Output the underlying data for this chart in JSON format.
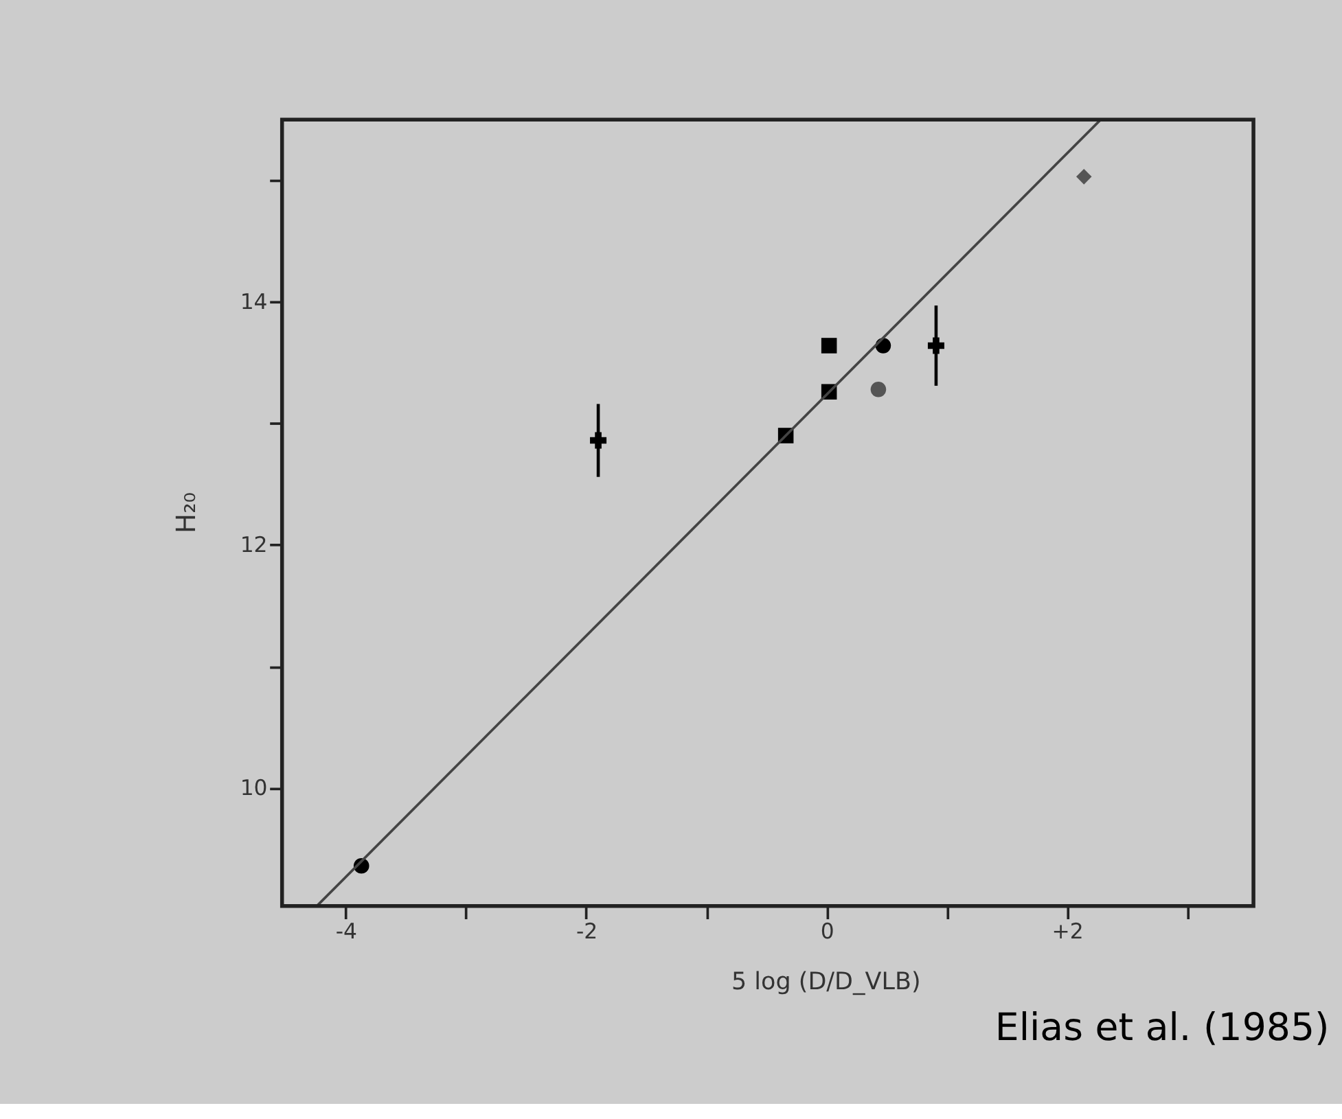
{
  "chart_data": {
    "type": "scatter",
    "xlabel": "5 log (D/D_VLB)",
    "ylabel": "H₂₀",
    "xlim": [
      -4.53,
      3.55
    ],
    "ylim": [
      9.03,
      15.5
    ],
    "xticks": [
      -4,
      {
        "value": -3,
        "label": null
      },
      -2,
      {
        "value": -1,
        "label": null
      },
      0,
      {
        "value": 1,
        "label": null
      },
      {
        "value": 2,
        "label": "+2"
      },
      {
        "value": 3,
        "label": null
      }
    ],
    "yticks": [
      10,
      {
        "value": 11,
        "label": null
      },
      12,
      {
        "value": 13,
        "label": null
      },
      14,
      {
        "value": 15,
        "label": null
      }
    ],
    "grid": false,
    "series": [
      {
        "color": "#000000",
        "marker": "circle",
        "x": [
          -3.87,
          0.47
        ],
        "values": [
          9.36,
          13.64
        ]
      },
      {
        "color": "#000000",
        "marker": "cross",
        "x": [
          -1.9,
          0.91
        ],
        "values": [
          12.86,
          13.64
        ],
        "errors": [
          0.3,
          0.33
        ]
      },
      {
        "color": "#000000",
        "marker": "square",
        "x": [
          -0.34,
          0.02,
          0.02
        ],
        "values": [
          12.9,
          13.26,
          13.64
        ]
      },
      {
        "color": "#555555",
        "marker": "circle",
        "x": [
          0.43
        ],
        "values": [
          13.28
        ]
      },
      {
        "color": "#555555",
        "marker": "diamond",
        "x": [
          2.14
        ],
        "values": [
          15.03
        ]
      },
      {
        "type": "line",
        "color": "#444444",
        "marker": "none",
        "x": [
          -4.24,
          2.28
        ],
        "values": [
          9.03,
          15.5
        ]
      }
    ],
    "annotations": [
      "Elias et al. (1985)"
    ]
  }
}
